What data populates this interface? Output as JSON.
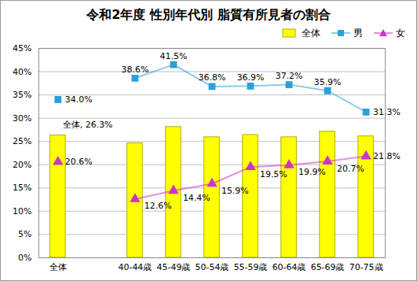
{
  "chart_data": {
    "type": "bar",
    "title": "令和2年度 性別年代別 脂質有所見者の割合",
    "categories": [
      "全体",
      null,
      "40-44歳",
      "45-49歳",
      "50-54歳",
      "55-59歳",
      "60-64歳",
      "65-69歳",
      "70-75歳"
    ],
    "series": [
      {
        "name": "全体",
        "type": "bar",
        "color": "#ffff00",
        "values": [
          26.3,
          null,
          24.6,
          28.1,
          25.9,
          26.4,
          25.9,
          27.1,
          26.1
        ],
        "value_labels": [
          "全体, 26.3%",
          null,
          null,
          null,
          null,
          null,
          null,
          null,
          null
        ]
      },
      {
        "name": "男",
        "type": "line",
        "color": "#2e9fd8",
        "marker": "square",
        "values": [
          34.0,
          null,
          38.6,
          41.5,
          36.8,
          36.9,
          37.2,
          35.9,
          31.3
        ],
        "value_labels": [
          "34.0%",
          null,
          "38.6%",
          "41.5%",
          "36.8%",
          "36.9%",
          "37.2%",
          "35.9%",
          "31.3%"
        ]
      },
      {
        "name": "女",
        "type": "line",
        "color": "#cc33cc",
        "marker": "triangle",
        "values": [
          20.6,
          null,
          12.6,
          14.4,
          15.9,
          19.5,
          19.9,
          20.7,
          21.8
        ],
        "value_labels": [
          "20.6%",
          null,
          "12.6%",
          "14.4%",
          "15.9%",
          "19.5%",
          "19.9%",
          "20.7%",
          "21.8%"
        ]
      }
    ],
    "ylim": [
      0,
      45
    ],
    "yticks": [
      {
        "value": 0,
        "label": "0%"
      },
      {
        "value": 5,
        "label": "5%"
      },
      {
        "value": 10,
        "label": "10%"
      },
      {
        "value": 15,
        "label": "15%"
      },
      {
        "value": 20,
        "label": "20%"
      },
      {
        "value": 25,
        "label": "25%"
      },
      {
        "value": 30,
        "label": "30%"
      },
      {
        "value": 35,
        "label": "35%"
      },
      {
        "value": 40,
        "label": "40%"
      },
      {
        "value": 45,
        "label": "45%"
      }
    ],
    "grid": true,
    "legend": "top-right",
    "data_labels": true
  }
}
